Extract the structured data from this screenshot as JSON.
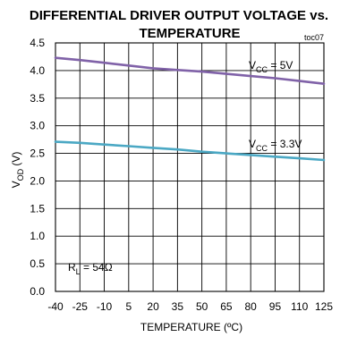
{
  "chart_data": {
    "type": "line",
    "title_line1": "DIFFERENTIAL DRIVER OUTPUT VOLTAGE vs.",
    "title_line2": "TEMPERATURE",
    "figure_tag": "toc07",
    "xlabel": "TEMPERATURE (ºC)",
    "ylabel": "VOD (V)",
    "ylabel_main": "V",
    "ylabel_sub": "OD",
    "ylabel_unit": " (V)",
    "xlim": [
      -40,
      125
    ],
    "ylim": [
      0,
      4.5
    ],
    "x_ticks": [
      -40,
      -25,
      -10,
      5,
      20,
      35,
      50,
      65,
      80,
      95,
      110,
      125
    ],
    "x_tick_labels": [
      "-40",
      "-25",
      "-10",
      "5",
      "20",
      "35",
      "50",
      "65",
      "80",
      "95",
      "110",
      "125"
    ],
    "y_ticks": [
      0,
      0.5,
      1.0,
      1.5,
      2.0,
      2.5,
      3.0,
      3.5,
      4.0,
      4.5
    ],
    "y_tick_labels": [
      "0.0",
      "0.5",
      "1.0",
      "1.5",
      "2.0",
      "2.5",
      "3.0",
      "3.5",
      "4.0",
      "4.5"
    ],
    "grid": true,
    "annotation": {
      "text": "RL = 54Ω",
      "main": "R",
      "sub": "L",
      "rest": " = 54Ω"
    },
    "series": [
      {
        "name": "VCC = 5V",
        "label_main": "V",
        "label_sub": "CC",
        "label_rest": " = 5V",
        "color": "#8062a8",
        "x": [
          -40,
          -25,
          -10,
          5,
          20,
          35,
          50,
          65,
          80,
          95,
          110,
          125
        ],
        "values": [
          4.23,
          4.19,
          4.14,
          4.09,
          4.04,
          4.01,
          3.98,
          3.94,
          3.9,
          3.86,
          3.81,
          3.76
        ]
      },
      {
        "name": "VCC = 3.3V",
        "label_main": "V",
        "label_sub": "CC",
        "label_rest": " = 3.3V",
        "color": "#4ba8c4",
        "x": [
          -40,
          -25,
          -10,
          5,
          20,
          35,
          50,
          65,
          80,
          95,
          110,
          125
        ],
        "values": [
          2.71,
          2.69,
          2.66,
          2.63,
          2.6,
          2.57,
          2.53,
          2.5,
          2.47,
          2.44,
          2.41,
          2.38
        ]
      }
    ]
  }
}
